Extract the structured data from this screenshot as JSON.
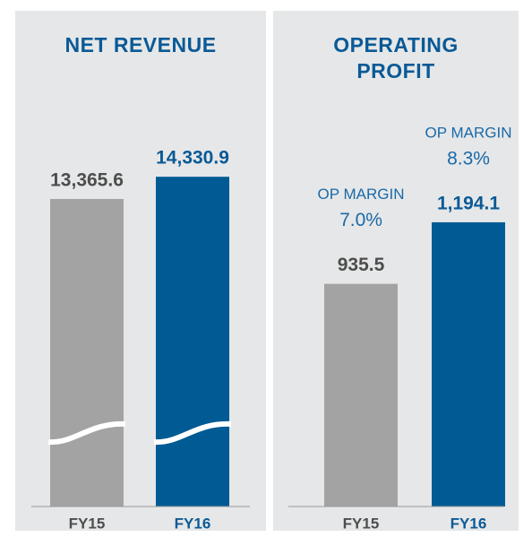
{
  "chart_data": [
    {
      "type": "bar",
      "title": "NET REVENUE",
      "categories": [
        "FY15",
        "FY16"
      ],
      "values": [
        13365.6,
        14330.9
      ],
      "value_labels": [
        "13,365.6",
        "14,330.9"
      ],
      "colors": [
        "#a3a3a3",
        "#005a94"
      ],
      "label_colors": [
        "#4d4d4d",
        "#0a5a96"
      ],
      "ylim": [
        0,
        15000
      ],
      "axis_break": true
    },
    {
      "type": "bar",
      "title": "OPERATING PROFIT",
      "categories": [
        "FY15",
        "FY16"
      ],
      "values": [
        935.5,
        1194.1
      ],
      "value_labels": [
        "935.5",
        "1,194.1"
      ],
      "colors": [
        "#a3a3a3",
        "#005a94"
      ],
      "label_colors": [
        "#4d4d4d",
        "#0a5a96"
      ],
      "ylim": [
        0,
        1450
      ],
      "annotations": [
        {
          "title": "OP MARGIN",
          "value_label": "7.0%"
        },
        {
          "title": "OP MARGIN",
          "value_label": "8.3%"
        }
      ]
    }
  ]
}
